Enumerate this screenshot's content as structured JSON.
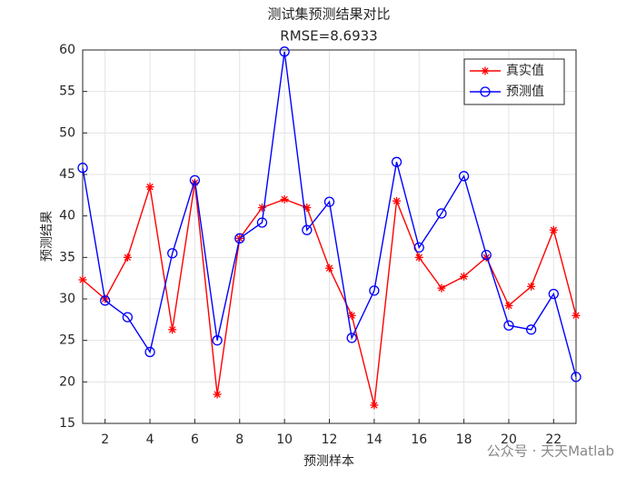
{
  "chart_data": {
    "type": "line",
    "title": "测试集预测结果对比",
    "subtitle": "RMSE=8.6933",
    "x_label": "预测样本",
    "y_label": "预测结果",
    "x": [
      1,
      2,
      3,
      4,
      5,
      6,
      7,
      8,
      9,
      10,
      11,
      12,
      13,
      14,
      15,
      16,
      17,
      18,
      19,
      20,
      21,
      22,
      23
    ],
    "series": [
      {
        "name": "真实值",
        "color": "#ff0000",
        "marker": "asterisk",
        "values": [
          32.3,
          30,
          35,
          43.5,
          26.3,
          44,
          18.5,
          37.3,
          41,
          42,
          41,
          33.7,
          28,
          17.2,
          41.8,
          35,
          31.3,
          32.7,
          35,
          29.2,
          31.5,
          38.3,
          28
        ]
      },
      {
        "name": "预测值",
        "color": "#0000ff",
        "marker": "circle",
        "values": [
          45.8,
          29.8,
          27.8,
          23.6,
          35.5,
          44.3,
          25,
          37.3,
          39.2,
          59.8,
          38.3,
          41.7,
          25.3,
          31,
          46.5,
          36.2,
          40.3,
          44.8,
          35.3,
          26.8,
          26.3,
          30.6,
          20.6
        ]
      }
    ],
    "xlim": [
      1,
      23
    ],
    "xticks": [
      2,
      4,
      6,
      8,
      10,
      12,
      14,
      16,
      18,
      20,
      22
    ],
    "ylim": [
      15,
      60
    ],
    "yticks": [
      15,
      20,
      25,
      30,
      35,
      40,
      45,
      50,
      55,
      60
    ],
    "grid": true,
    "legend_position": "northeast",
    "watermark": "公众号 · 天天Matlab"
  }
}
